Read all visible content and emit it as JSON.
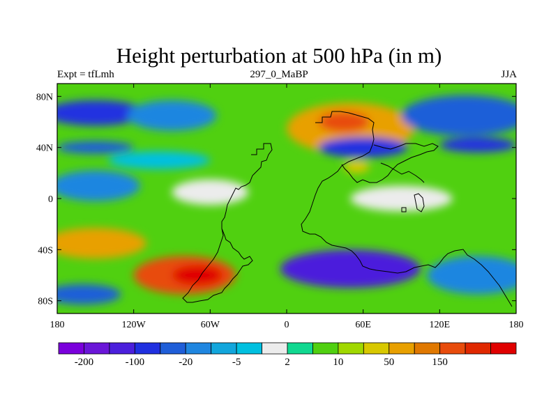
{
  "chart_data": {
    "type": "heatmap",
    "title": "Height perturbation at 500 hPa (in m)",
    "subtitle_left": "Expt = tfLmh",
    "subtitle_center": "297_0_MaBP",
    "subtitle_right": "JJA",
    "xlim": [
      -180,
      180
    ],
    "ylim": [
      -90,
      90
    ],
    "x_ticks": [
      {
        "value": -180,
        "label": "180"
      },
      {
        "value": -120,
        "label": "120W"
      },
      {
        "value": -60,
        "label": "60W"
      },
      {
        "value": 0,
        "label": "0"
      },
      {
        "value": 60,
        "label": "60E"
      },
      {
        "value": 120,
        "label": "120E"
      },
      {
        "value": 180,
        "label": "180"
      }
    ],
    "y_ticks": [
      {
        "value": 80,
        "label": "80N"
      },
      {
        "value": 40,
        "label": "40N"
      },
      {
        "value": 0,
        "label": "0"
      },
      {
        "value": -40,
        "label": "40S"
      },
      {
        "value": -80,
        "label": "80S"
      }
    ],
    "colorbar": {
      "colors": [
        "#7a00dc",
        "#6a16d8",
        "#4b1fdc",
        "#2030e0",
        "#1f5ed8",
        "#1f86e0",
        "#12a6dc",
        "#00c0e0",
        "#ececec",
        "#10d890",
        "#50d010",
        "#a0d800",
        "#d8c800",
        "#e8a000",
        "#e07800",
        "#e84c0c",
        "#e02800",
        "#e00000"
      ],
      "labels": [
        {
          "boundary": 1,
          "text": "-200"
        },
        {
          "boundary": 3,
          "text": "-100"
        },
        {
          "boundary": 5,
          "text": "-20"
        },
        {
          "boundary": 7,
          "text": "-5"
        },
        {
          "boundary": 9,
          "text": "2"
        },
        {
          "boundary": 11,
          "text": "10"
        },
        {
          "boundary": 13,
          "text": "50"
        },
        {
          "boundary": 15,
          "text": "150"
        }
      ]
    },
    "field": {
      "background_class": 10,
      "features": [
        {
          "lon": -150,
          "lat": 67,
          "class": 3,
          "rlon": 40,
          "rlat": 10
        },
        {
          "lon": -90,
          "lat": 65,
          "class": 5,
          "rlon": 35,
          "rlat": 12
        },
        {
          "lon": -150,
          "lat": 40,
          "class": 4,
          "rlon": 30,
          "rlat": 5
        },
        {
          "lon": -100,
          "lat": 30,
          "class": 7,
          "rlon": 40,
          "rlat": 7
        },
        {
          "lon": 50,
          "lat": 55,
          "class": 13,
          "rlon": 50,
          "rlat": 20
        },
        {
          "lon": 45,
          "lat": 60,
          "class": 15,
          "rlon": 20,
          "rlat": 8
        },
        {
          "lon": 140,
          "lat": 65,
          "class": 4,
          "rlon": 50,
          "rlat": 16
        },
        {
          "lon": 150,
          "lat": 42,
          "class": 3,
          "rlon": 30,
          "rlat": 6
        },
        {
          "lon": 60,
          "lat": 40,
          "class": 3,
          "rlon": 35,
          "rlat": 8
        },
        {
          "lon": 55,
          "lat": 25,
          "class": 12,
          "rlon": 10,
          "rlat": 5
        },
        {
          "lon": -60,
          "lat": 5,
          "class": 8,
          "rlon": 30,
          "rlat": 10
        },
        {
          "lon": -150,
          "lat": 10,
          "class": 5,
          "rlon": 35,
          "rlat": 12
        },
        {
          "lon": 90,
          "lat": 0,
          "class": 8,
          "rlon": 40,
          "rlat": 10
        },
        {
          "lon": -150,
          "lat": -35,
          "class": 13,
          "rlon": 40,
          "rlat": 12
        },
        {
          "lon": -80,
          "lat": -60,
          "class": 15,
          "rlon": 40,
          "rlat": 15
        },
        {
          "lon": -70,
          "lat": -60,
          "class": 17,
          "rlon": 20,
          "rlat": 8
        },
        {
          "lon": 50,
          "lat": -55,
          "class": 2,
          "rlon": 55,
          "rlat": 15
        },
        {
          "lon": 150,
          "lat": -60,
          "class": 5,
          "rlon": 40,
          "rlat": 15
        },
        {
          "lon": -160,
          "lat": -75,
          "class": 4,
          "rlon": 30,
          "rlat": 8
        }
      ]
    }
  }
}
